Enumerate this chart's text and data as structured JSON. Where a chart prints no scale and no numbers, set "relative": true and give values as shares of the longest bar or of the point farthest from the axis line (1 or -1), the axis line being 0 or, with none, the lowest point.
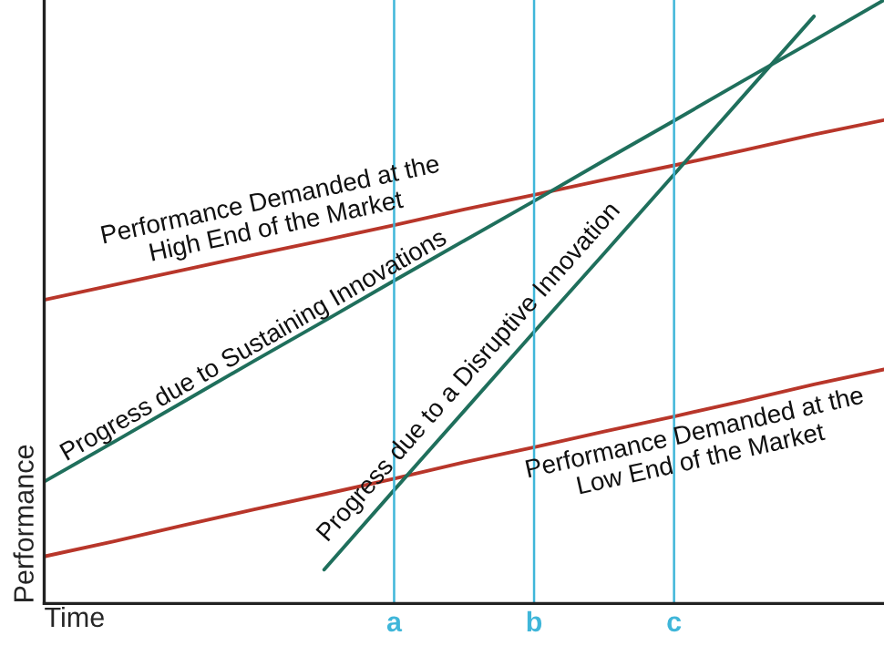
{
  "chart_data": {
    "type": "line",
    "relative": true,
    "xlabel": "Time",
    "ylabel": "Performance",
    "legend": false,
    "marker": "none",
    "line_style": "solid",
    "categories": [
      null,
      null,
      null,
      null,
      null,
      "a",
      null,
      "b",
      null,
      "c",
      null,
      null,
      null
    ],
    "series": [
      {
        "name": "Performance Demanded at the\nHigh End of the Market",
        "color": "#b8362a",
        "values": [
          0.503,
          0.528,
          0.553,
          0.578,
          0.602,
          0.627,
          0.653,
          0.677,
          0.702,
          0.726,
          0.751,
          0.777,
          0.801
        ]
      },
      {
        "name": "Progress due to Sustaining Innovations",
        "color": "#1f6f5c",
        "values": [
          0.202,
          0.268,
          0.335,
          0.402,
          0.468,
          0.535,
          0.601,
          0.667,
          0.734,
          0.8,
          0.867,
          0.933,
          1.0
        ]
      },
      {
        "name": "Performance Demanded at the\nLow End of the Market",
        "color": "#b8362a",
        "values": [
          0.078,
          0.103,
          0.13,
          0.156,
          0.181,
          0.207,
          0.234,
          0.259,
          0.285,
          0.31,
          0.336,
          0.363,
          0.388
        ]
      },
      {
        "name": "Progress due to a Disruptive Innovation",
        "color": "#1f6f5c",
        "values": [
          null,
          null,
          null,
          null,
          0.056,
          0.188,
          0.319,
          0.45,
          0.58,
          0.711,
          0.842,
          0.973,
          null
        ]
      }
    ],
    "ref_lines": [
      {
        "axis": "x",
        "value": "a",
        "color": "#3fb6d9"
      },
      {
        "axis": "x",
        "value": "b",
        "color": "#3fb6d9"
      },
      {
        "axis": "x",
        "value": "c",
        "color": "#3fb6d9"
      }
    ]
  }
}
